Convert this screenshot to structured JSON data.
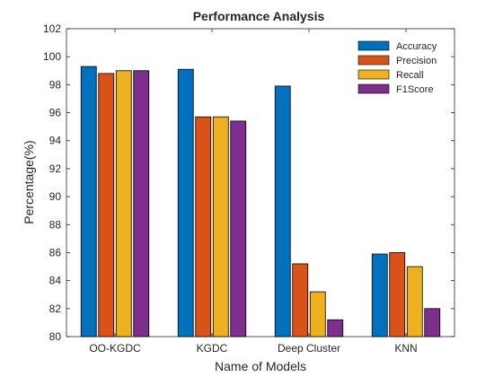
{
  "chart_data": {
    "type": "bar",
    "title": "Performance Analysis",
    "xlabel": "Name of Models",
    "ylabel": "Percentage(%)",
    "categories": [
      "OO-KGDC",
      "KGDC",
      "Deep Cluster",
      "KNN"
    ],
    "ylim": [
      80,
      102
    ],
    "yticks": [
      80,
      82,
      84,
      86,
      88,
      90,
      92,
      94,
      96,
      98,
      100,
      102
    ],
    "grid": false,
    "legend_position": "top-right",
    "series": [
      {
        "name": "Accuracy",
        "color": "#0072BD",
        "values": [
          99.3,
          99.1,
          97.9,
          85.9
        ]
      },
      {
        "name": "Precision",
        "color": "#D95319",
        "values": [
          98.8,
          95.7,
          85.2,
          86.0
        ]
      },
      {
        "name": "Recall",
        "color": "#EDB120",
        "values": [
          99.0,
          95.7,
          83.2,
          85.0
        ]
      },
      {
        "name": "F1Score",
        "color": "#7E2F8E",
        "values": [
          99.0,
          95.4,
          81.2,
          82.0
        ]
      }
    ]
  }
}
